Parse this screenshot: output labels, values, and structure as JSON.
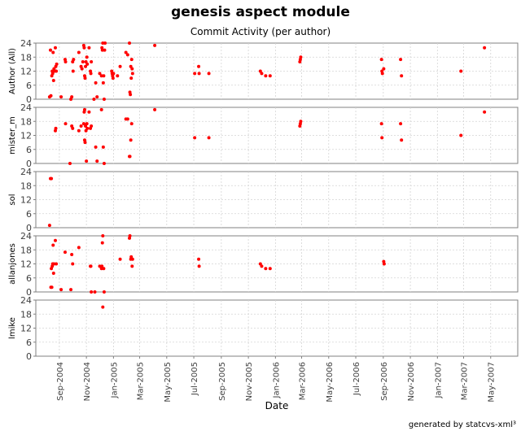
{
  "title": "genesis aspect module",
  "subtitle": "Commit Activity (per author)",
  "footer": "generated by statcvs-xml³",
  "chart_data": {
    "type": "scatter",
    "xlabel": "Date",
    "x_tick_labels": [
      "Sep-2004",
      "Nov-2004",
      "Jan-2005",
      "Mar-2005",
      "May-2005",
      "Jul-2005",
      "Sep-2005",
      "Nov-2005",
      "Jan-2006",
      "Mar-2006",
      "May-2006",
      "Jul-2006",
      "Sep-2006",
      "Nov-2006",
      "Jan-2007",
      "Mar-2007",
      "May-2007"
    ],
    "x_tick_dates": [
      "2004-09-01",
      "2004-11-01",
      "2005-01-01",
      "2005-03-01",
      "2005-05-01",
      "2005-07-01",
      "2005-09-01",
      "2005-11-01",
      "2006-01-01",
      "2006-03-01",
      "2006-05-01",
      "2006-07-01",
      "2006-09-01",
      "2006-11-01",
      "2007-01-01",
      "2007-03-01",
      "2007-05-01"
    ],
    "xlim": [
      "2004-07-10",
      "2007-07-01"
    ],
    "ylim": [
      0,
      24
    ],
    "y_ticks": [
      0,
      6,
      12,
      18,
      24
    ],
    "grid": true,
    "point_color": "#ff0000",
    "panels": [
      {
        "ylabel": "Author (All)",
        "points": [
          [
            "2004-08-10",
            1
          ],
          [
            "2004-08-13",
            1.5
          ],
          [
            "2004-08-12",
            21
          ],
          [
            "2004-08-15",
            10
          ],
          [
            "2004-08-16",
            12
          ],
          [
            "2004-08-17",
            11
          ],
          [
            "2004-08-18",
            20
          ],
          [
            "2004-08-19",
            8
          ],
          [
            "2004-08-20",
            13
          ],
          [
            "2004-08-21",
            12
          ],
          [
            "2004-08-23",
            22
          ],
          [
            "2004-08-24",
            14
          ],
          [
            "2004-08-25",
            12
          ],
          [
            "2004-08-26",
            15
          ],
          [
            "2004-09-05",
            1
          ],
          [
            "2004-09-14",
            17
          ],
          [
            "2004-09-15",
            16
          ],
          [
            "2004-09-27",
            0
          ],
          [
            "2004-09-29",
            1
          ],
          [
            "2004-10-01",
            16
          ],
          [
            "2004-10-02",
            12
          ],
          [
            "2004-10-03",
            17
          ],
          [
            "2004-10-15",
            20
          ],
          [
            "2004-10-20",
            14
          ],
          [
            "2004-10-22",
            13
          ],
          [
            "2004-10-24",
            16
          ],
          [
            "2004-10-26",
            23
          ],
          [
            "2004-10-27",
            22
          ],
          [
            "2004-10-28",
            10
          ],
          [
            "2004-10-29",
            9
          ],
          [
            "2004-10-30",
            14
          ],
          [
            "2004-10-31",
            16
          ],
          [
            "2004-11-02",
            18
          ],
          [
            "2004-11-03",
            15
          ],
          [
            "2004-11-07",
            22
          ],
          [
            "2004-11-10",
            12
          ],
          [
            "2004-11-11",
            11
          ],
          [
            "2004-11-12",
            16
          ],
          [
            "2004-11-18",
            0
          ],
          [
            "2004-11-22",
            7
          ],
          [
            "2004-11-25",
            1
          ],
          [
            "2004-12-01",
            11
          ],
          [
            "2004-12-05",
            10
          ],
          [
            "2004-12-06",
            22
          ],
          [
            "2004-12-07",
            21
          ],
          [
            "2004-12-08",
            24
          ],
          [
            "2004-12-09",
            7
          ],
          [
            "2004-12-10",
            10
          ],
          [
            "2004-12-11",
            0
          ],
          [
            "2004-12-12",
            21
          ],
          [
            "2004-12-13",
            24
          ],
          [
            "2004-12-28",
            12
          ],
          [
            "2004-12-29",
            11
          ],
          [
            "2004-12-30",
            10
          ],
          [
            "2004-12-31",
            9
          ],
          [
            "2005-01-01",
            11
          ],
          [
            "2005-01-10",
            10
          ],
          [
            "2005-01-16",
            14
          ],
          [
            "2005-01-29",
            20
          ],
          [
            "2005-02-02",
            19
          ],
          [
            "2005-02-06",
            24
          ],
          [
            "2005-02-07",
            3
          ],
          [
            "2005-02-08",
            2
          ],
          [
            "2005-02-09",
            14
          ],
          [
            "2005-02-10",
            9
          ],
          [
            "2005-02-11",
            17
          ],
          [
            "2005-02-12",
            13
          ],
          [
            "2005-02-13",
            11
          ],
          [
            "2005-04-04",
            23
          ],
          [
            "2005-07-03",
            11
          ],
          [
            "2005-07-12",
            14
          ],
          [
            "2005-07-13",
            11
          ],
          [
            "2005-08-04",
            11
          ],
          [
            "2005-11-28",
            12
          ],
          [
            "2005-12-01",
            11
          ],
          [
            "2005-12-10",
            10
          ],
          [
            "2005-12-20",
            10
          ],
          [
            "2006-02-25",
            16
          ],
          [
            "2006-02-26",
            17
          ],
          [
            "2006-02-27",
            18
          ],
          [
            "2006-08-28",
            17
          ],
          [
            "2006-08-29",
            12
          ],
          [
            "2006-08-30",
            11
          ],
          [
            "2006-09-02",
            13
          ],
          [
            "2006-10-10",
            17
          ],
          [
            "2006-10-12",
            10
          ],
          [
            "2007-02-23",
            12
          ],
          [
            "2007-04-17",
            22
          ]
        ]
      },
      {
        "ylabel": "mister_m",
        "points": [
          [
            "2004-08-23",
            14
          ],
          [
            "2004-08-24",
            15
          ],
          [
            "2004-09-15",
            17
          ],
          [
            "2004-09-25",
            0
          ],
          [
            "2004-09-29",
            16
          ],
          [
            "2004-10-01",
            15
          ],
          [
            "2004-10-15",
            14
          ],
          [
            "2004-10-20",
            16
          ],
          [
            "2004-10-26",
            17
          ],
          [
            "2004-10-27",
            22
          ],
          [
            "2004-10-28",
            23
          ],
          [
            "2004-10-28",
            10
          ],
          [
            "2004-10-29",
            9
          ],
          [
            "2004-10-30",
            16
          ],
          [
            "2004-10-31",
            14
          ],
          [
            "2004-11-01",
            1
          ],
          [
            "2004-11-02",
            17
          ],
          [
            "2004-11-03",
            15
          ],
          [
            "2004-11-07",
            22
          ],
          [
            "2004-11-10",
            15
          ],
          [
            "2004-11-12",
            16
          ],
          [
            "2004-11-22",
            7
          ],
          [
            "2004-11-25",
            1
          ],
          [
            "2004-12-05",
            23
          ],
          [
            "2004-12-09",
            7
          ],
          [
            "2004-12-11",
            0
          ],
          [
            "2005-01-29",
            19
          ],
          [
            "2005-02-02",
            19
          ],
          [
            "2005-02-06",
            3
          ],
          [
            "2005-02-07",
            3
          ],
          [
            "2005-02-09",
            10
          ],
          [
            "2005-02-11",
            17
          ],
          [
            "2005-04-04",
            23
          ],
          [
            "2005-07-03",
            11
          ],
          [
            "2005-08-04",
            11
          ],
          [
            "2006-02-25",
            16
          ],
          [
            "2006-02-26",
            17
          ],
          [
            "2006-02-27",
            18
          ],
          [
            "2006-08-28",
            17
          ],
          [
            "2006-08-29",
            11
          ],
          [
            "2006-10-10",
            17
          ],
          [
            "2006-10-12",
            10
          ],
          [
            "2007-02-23",
            12
          ],
          [
            "2007-04-17",
            22
          ]
        ]
      },
      {
        "ylabel": "sol",
        "points": [
          [
            "2004-08-10",
            1
          ],
          [
            "2004-08-12",
            21
          ],
          [
            "2004-08-14",
            21
          ]
        ]
      },
      {
        "ylabel": "allanjones",
        "points": [
          [
            "2004-08-13",
            2
          ],
          [
            "2004-08-14",
            10
          ],
          [
            "2004-08-15",
            2
          ],
          [
            "2004-08-16",
            11
          ],
          [
            "2004-08-17",
            12
          ],
          [
            "2004-08-18",
            20
          ],
          [
            "2004-08-19",
            8
          ],
          [
            "2004-08-20",
            12
          ],
          [
            "2004-08-23",
            22
          ],
          [
            "2004-08-25",
            12
          ],
          [
            "2004-09-05",
            1
          ],
          [
            "2004-09-14",
            17
          ],
          [
            "2004-09-27",
            1
          ],
          [
            "2004-09-29",
            16
          ],
          [
            "2004-10-01",
            12
          ],
          [
            "2004-10-15",
            19
          ],
          [
            "2004-11-10",
            11
          ],
          [
            "2004-11-11",
            11
          ],
          [
            "2004-11-12",
            0
          ],
          [
            "2004-11-20",
            0
          ],
          [
            "2004-12-01",
            11
          ],
          [
            "2004-12-05",
            10
          ],
          [
            "2004-12-06",
            11
          ],
          [
            "2004-12-07",
            21
          ],
          [
            "2004-12-08",
            24
          ],
          [
            "2004-12-10",
            10
          ],
          [
            "2004-12-11",
            0
          ],
          [
            "2005-01-16",
            14
          ],
          [
            "2005-02-06",
            23
          ],
          [
            "2005-02-07",
            24
          ],
          [
            "2005-02-09",
            14
          ],
          [
            "2005-02-10",
            15
          ],
          [
            "2005-02-12",
            11
          ],
          [
            "2005-02-13",
            14
          ],
          [
            "2005-07-12",
            14
          ],
          [
            "2005-07-13",
            11
          ],
          [
            "2005-11-28",
            12
          ],
          [
            "2005-12-01",
            11
          ],
          [
            "2005-12-10",
            10
          ],
          [
            "2005-12-20",
            10
          ],
          [
            "2006-09-02",
            13
          ],
          [
            "2006-09-03",
            12
          ]
        ]
      },
      {
        "ylabel": "lmike",
        "points": [
          [
            "2004-12-08",
            21
          ]
        ]
      }
    ]
  }
}
